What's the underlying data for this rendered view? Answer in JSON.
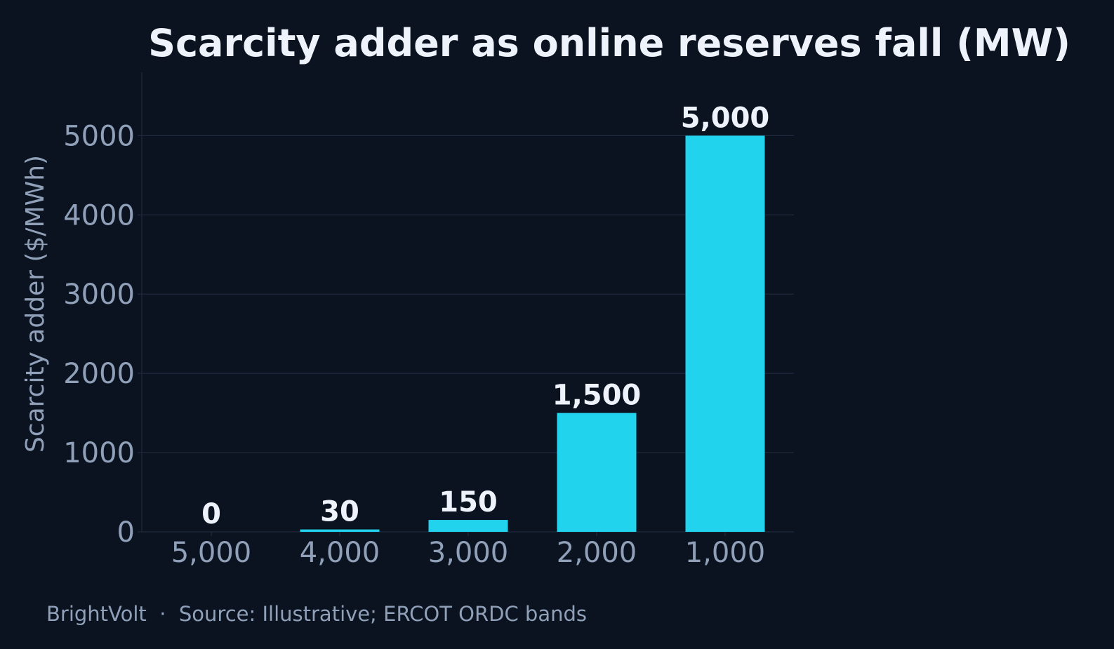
{
  "chart_data": {
    "type": "bar",
    "title": "Scarcity adder as online reserves fall (MW)",
    "xlabel": "",
    "ylabel": "Scarcity adder ($/MWh)",
    "categories": [
      "5,000",
      "4,000",
      "3,000",
      "2,000",
      "1,000"
    ],
    "values": [
      0,
      30,
      150,
      1500,
      5000
    ],
    "data_labels": [
      "0",
      "30",
      "150",
      "1,500",
      "5,000"
    ],
    "yticks": [
      0,
      1000,
      2000,
      3000,
      4000,
      5000
    ],
    "ylim": [
      0,
      5800
    ],
    "grid": true,
    "legend": "none",
    "colors": {
      "bar": "#22d3ee",
      "background": "#0b1320",
      "grid": "#1f2b3e",
      "text": "#8fa0b8",
      "title": "#eef3fb"
    }
  },
  "footer": "BrightVolt  ·  Source: Illustrative; ERCOT ORDC bands"
}
